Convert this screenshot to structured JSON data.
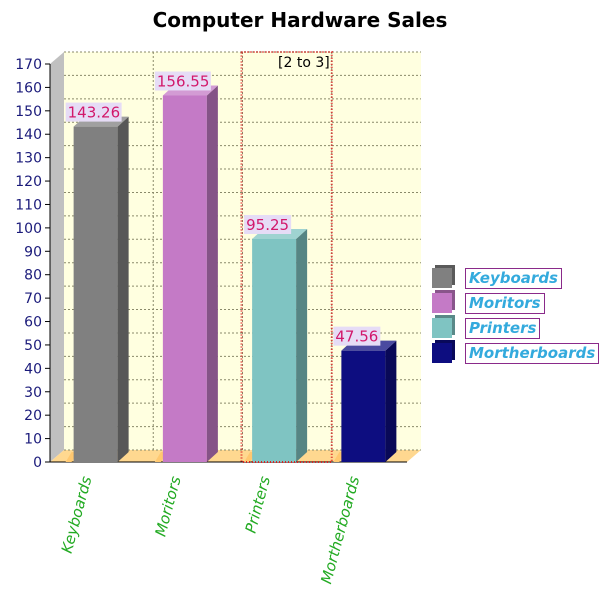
{
  "chart_data": {
    "type": "bar",
    "title": "Computer Hardware Sales",
    "categories": [
      "Keyboards",
      "Moritors",
      "Printers",
      "Mortherboards"
    ],
    "values": [
      143.26,
      156.55,
      95.25,
      47.56
    ],
    "value_labels": [
      "143.26",
      "156.55",
      "95.25",
      "47.56"
    ],
    "colors": [
      "#808080",
      "#c47ac6",
      "#7fc4c2",
      "#0d0d80"
    ],
    "ylim": [
      0,
      170
    ],
    "yticks": [
      0,
      10,
      20,
      30,
      40,
      50,
      60,
      70,
      80,
      90,
      100,
      110,
      120,
      130,
      140,
      150,
      160,
      170
    ],
    "grid": true,
    "legend": "right",
    "annotation": "[2 to 3]",
    "background": "#ffffe0"
  }
}
